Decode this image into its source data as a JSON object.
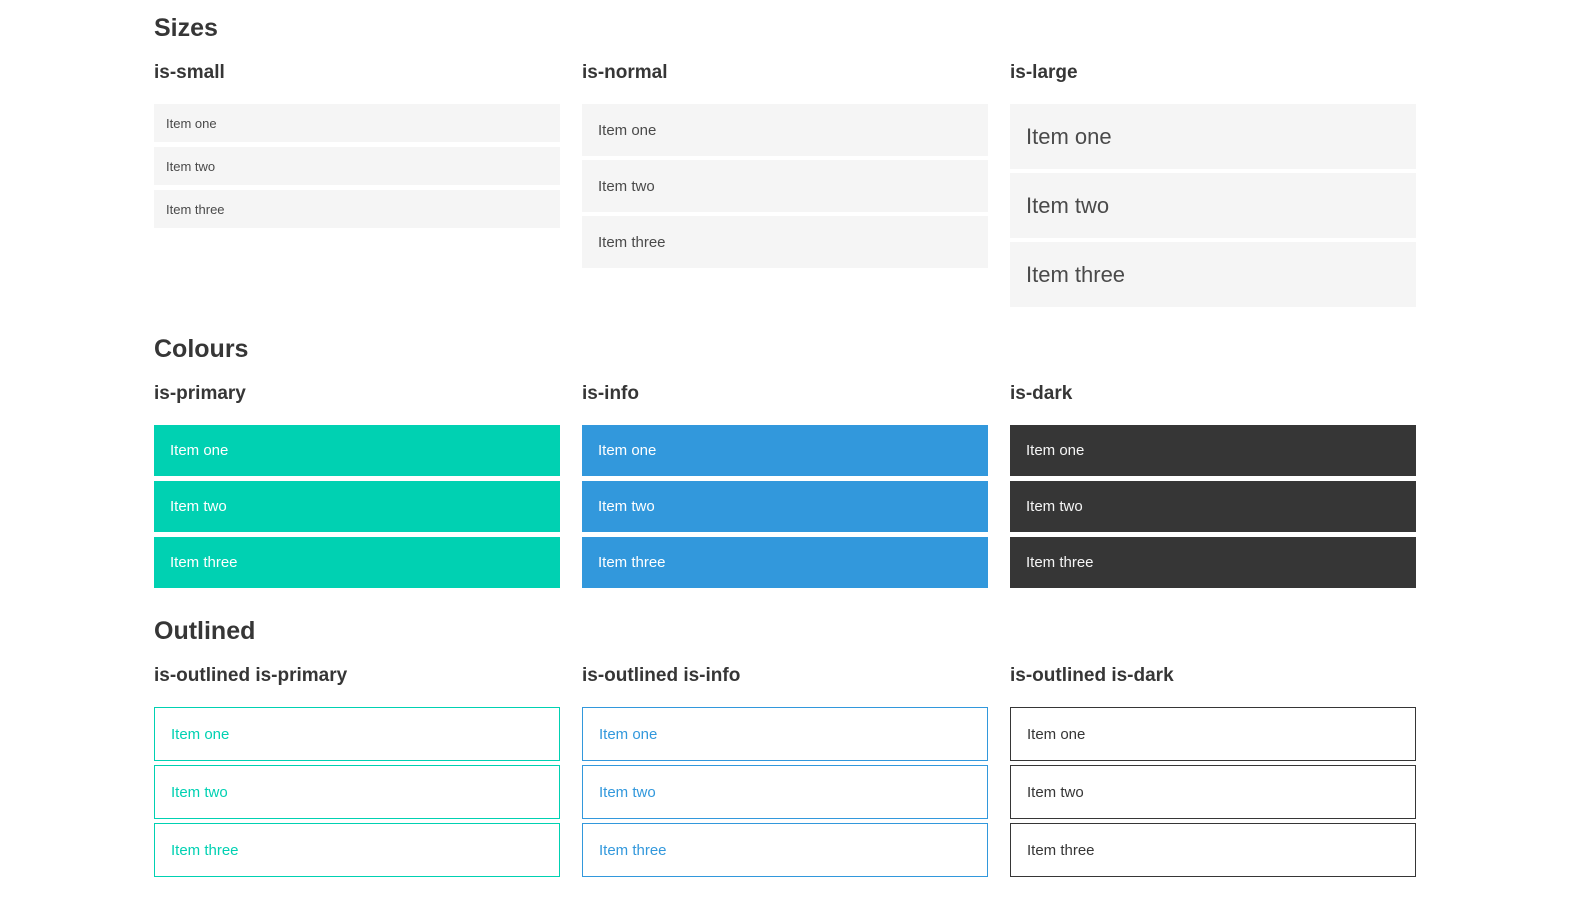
{
  "colors": {
    "page-bg": "#ffffff",
    "heading": "#363636",
    "item-bg": "#f5f5f5",
    "item-text": "#4a4a4a",
    "light-text": "#f5f5f5",
    "primary": "#00d1b2",
    "info": "#3298dc",
    "dark": "#363636"
  },
  "sections": [
    {
      "title": "Sizes",
      "groups": [
        {
          "label": "is-small",
          "items": [
            "Item one",
            "Item two",
            "Item three"
          ]
        },
        {
          "label": "is-normal",
          "items": [
            "Item one",
            "Item two",
            "Item three"
          ]
        },
        {
          "label": "is-large",
          "items": [
            "Item one",
            "Item two",
            "Item three"
          ]
        }
      ]
    },
    {
      "title": "Colours",
      "groups": [
        {
          "label": "is-primary",
          "items": [
            "Item one",
            "Item two",
            "Item three"
          ]
        },
        {
          "label": "is-info",
          "items": [
            "Item one",
            "Item two",
            "Item three"
          ]
        },
        {
          "label": "is-dark",
          "items": [
            "Item one",
            "Item two",
            "Item three"
          ]
        }
      ]
    },
    {
      "title": "Outlined",
      "groups": [
        {
          "label": "is-outlined is-primary",
          "items": [
            "Item one",
            "Item two",
            "Item three"
          ]
        },
        {
          "label": "is-outlined is-info",
          "items": [
            "Item one",
            "Item two",
            "Item three"
          ]
        },
        {
          "label": "is-outlined is-dark",
          "items": [
            "Item one",
            "Item two",
            "Item three"
          ]
        }
      ]
    }
  ]
}
